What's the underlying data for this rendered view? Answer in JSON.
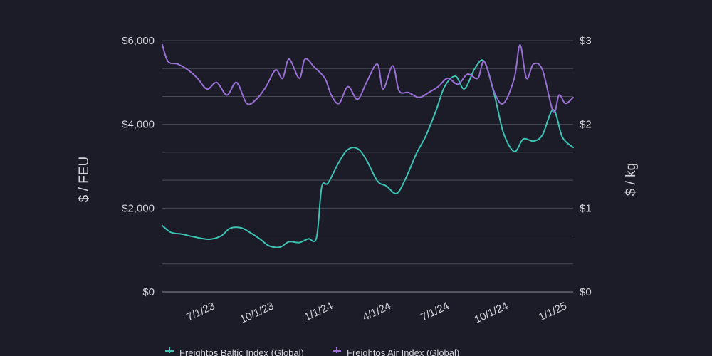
{
  "chart_data": {
    "type": "line",
    "title": "",
    "ylabel_left": "$ / FEU",
    "ylabel_right": "$ / kg",
    "y_left_ticks": [
      "$0",
      "$2,000",
      "$4,000",
      "$6,000"
    ],
    "y_right_ticks": [
      "$0",
      "$1",
      "$2",
      "$3"
    ],
    "ylim_left": [
      0,
      6000
    ],
    "ylim_right": [
      0,
      3
    ],
    "x_ticks": [
      {
        "label": "7/1/23",
        "date": "2023-07-01"
      },
      {
        "label": "10/1/23",
        "date": "2023-10-01"
      },
      {
        "label": "1/1/24",
        "date": "2024-01-01"
      },
      {
        "label": "4/1/24",
        "date": "2024-04-01"
      },
      {
        "label": "7/1/24",
        "date": "2024-07-01"
      },
      {
        "label": "10/1/24",
        "date": "2024-10-01"
      },
      {
        "label": "1/1/25",
        "date": "2025-01-01"
      }
    ],
    "xlim": [
      "2023-05-01",
      "2025-02-01"
    ],
    "grid": true,
    "legend_position": "bottom",
    "series": [
      {
        "name": "Freightos Baltic Index (Global)",
        "axis": "left",
        "color": "#3cc3b4",
        "points": [
          [
            "2023-05-01",
            1580
          ],
          [
            "2023-05-15",
            1420
          ],
          [
            "2023-06-01",
            1380
          ],
          [
            "2023-06-15",
            1330
          ],
          [
            "2023-07-01",
            1280
          ],
          [
            "2023-07-15",
            1260
          ],
          [
            "2023-08-01",
            1340
          ],
          [
            "2023-08-15",
            1520
          ],
          [
            "2023-09-01",
            1530
          ],
          [
            "2023-09-15",
            1420
          ],
          [
            "2023-10-01",
            1260
          ],
          [
            "2023-10-15",
            1100
          ],
          [
            "2023-11-01",
            1070
          ],
          [
            "2023-11-15",
            1200
          ],
          [
            "2023-12-01",
            1180
          ],
          [
            "2023-12-15",
            1270
          ],
          [
            "2023-12-28",
            1300
          ],
          [
            "2024-01-05",
            2500
          ],
          [
            "2024-01-15",
            2600
          ],
          [
            "2024-02-01",
            3100
          ],
          [
            "2024-02-15",
            3400
          ],
          [
            "2024-03-01",
            3420
          ],
          [
            "2024-03-15",
            3150
          ],
          [
            "2024-04-01",
            2650
          ],
          [
            "2024-04-15",
            2530
          ],
          [
            "2024-05-01",
            2350
          ],
          [
            "2024-05-15",
            2700
          ],
          [
            "2024-06-01",
            3300
          ],
          [
            "2024-06-15",
            3700
          ],
          [
            "2024-07-01",
            4300
          ],
          [
            "2024-07-15",
            4900
          ],
          [
            "2024-08-01",
            5150
          ],
          [
            "2024-08-15",
            4850
          ],
          [
            "2024-09-01",
            5350
          ],
          [
            "2024-09-15",
            5500
          ],
          [
            "2024-10-01",
            4700
          ],
          [
            "2024-10-15",
            3800
          ],
          [
            "2024-11-01",
            3350
          ],
          [
            "2024-11-15",
            3650
          ],
          [
            "2024-12-01",
            3600
          ],
          [
            "2024-12-15",
            3750
          ],
          [
            "2025-01-01",
            4350
          ],
          [
            "2025-01-15",
            3700
          ],
          [
            "2025-02-01",
            3450
          ]
        ]
      },
      {
        "name": "Freightos Air Index (Global)",
        "axis": "right",
        "color": "#9a6fd6",
        "points": [
          [
            "2023-05-01",
            2.95
          ],
          [
            "2023-05-10",
            2.75
          ],
          [
            "2023-05-25",
            2.72
          ],
          [
            "2023-06-10",
            2.65
          ],
          [
            "2023-06-25",
            2.55
          ],
          [
            "2023-07-10",
            2.42
          ],
          [
            "2023-07-25",
            2.5
          ],
          [
            "2023-08-10",
            2.35
          ],
          [
            "2023-08-25",
            2.5
          ],
          [
            "2023-09-10",
            2.25
          ],
          [
            "2023-09-25",
            2.3
          ],
          [
            "2023-10-10",
            2.45
          ],
          [
            "2023-10-25",
            2.65
          ],
          [
            "2023-11-05",
            2.55
          ],
          [
            "2023-11-15",
            2.78
          ],
          [
            "2023-12-01",
            2.55
          ],
          [
            "2023-12-10",
            2.78
          ],
          [
            "2023-12-25",
            2.68
          ],
          [
            "2024-01-10",
            2.55
          ],
          [
            "2024-01-20",
            2.35
          ],
          [
            "2024-02-01",
            2.25
          ],
          [
            "2024-02-15",
            2.45
          ],
          [
            "2024-03-01",
            2.3
          ],
          [
            "2024-03-15",
            2.5
          ],
          [
            "2024-04-01",
            2.72
          ],
          [
            "2024-04-10",
            2.42
          ],
          [
            "2024-04-25",
            2.7
          ],
          [
            "2024-05-05",
            2.4
          ],
          [
            "2024-05-20",
            2.38
          ],
          [
            "2024-06-05",
            2.32
          ],
          [
            "2024-06-20",
            2.38
          ],
          [
            "2024-07-05",
            2.45
          ],
          [
            "2024-07-20",
            2.55
          ],
          [
            "2024-08-05",
            2.48
          ],
          [
            "2024-08-20",
            2.6
          ],
          [
            "2024-09-05",
            2.55
          ],
          [
            "2024-09-15",
            2.75
          ],
          [
            "2024-10-01",
            2.38
          ],
          [
            "2024-10-15",
            2.25
          ],
          [
            "2024-11-01",
            2.55
          ],
          [
            "2024-11-10",
            2.95
          ],
          [
            "2024-11-20",
            2.55
          ],
          [
            "2024-12-01",
            2.72
          ],
          [
            "2024-12-15",
            2.65
          ],
          [
            "2025-01-01",
            2.15
          ],
          [
            "2025-01-10",
            2.35
          ],
          [
            "2025-01-20",
            2.25
          ],
          [
            "2025-02-01",
            2.32
          ]
        ]
      }
    ]
  }
}
